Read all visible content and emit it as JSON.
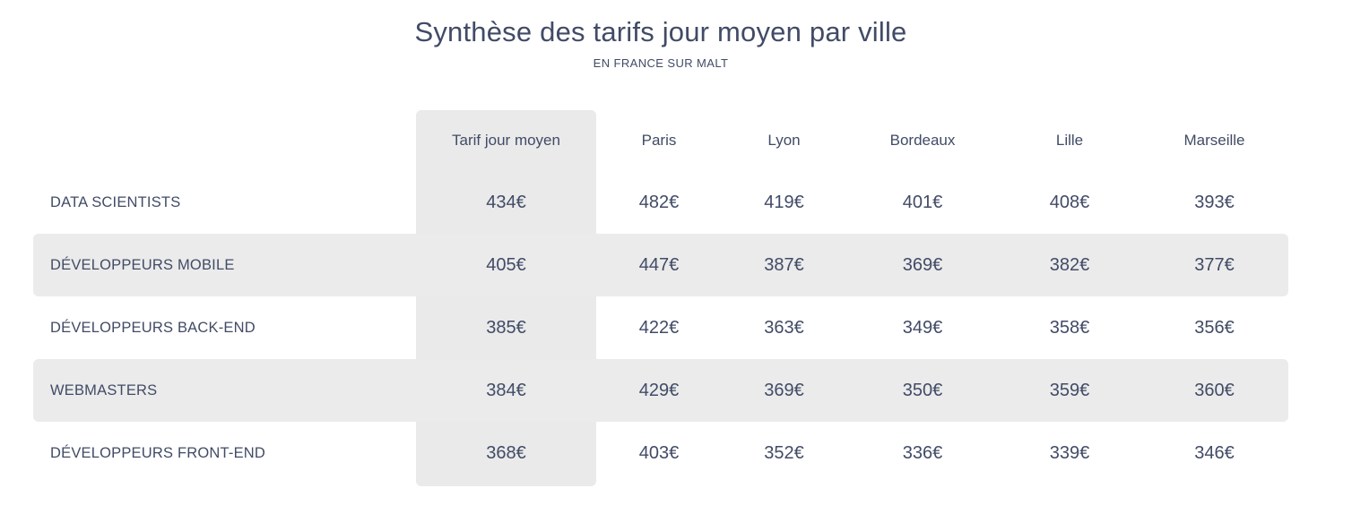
{
  "header": {
    "title": "Synthèse des tarifs jour moyen par ville",
    "subtitle": "EN FRANCE SUR MALT"
  },
  "colors": {
    "text": "#414b66",
    "highlight_bg": "#eaeaea",
    "stripe_bg": "#ebebeb",
    "page_bg": "#ffffff"
  },
  "table": {
    "columns": [
      "Tarif jour moyen",
      "Paris",
      "Lyon",
      "Bordeaux",
      "Lille",
      "Marseille"
    ],
    "rows": [
      {
        "label": "DATA SCIENTISTS",
        "cells": [
          "434€",
          "482€",
          "419€",
          "401€",
          "408€",
          "393€"
        ]
      },
      {
        "label": "DÉVELOPPEURS MOBILE",
        "cells": [
          "405€",
          "447€",
          "387€",
          "369€",
          "382€",
          "377€"
        ]
      },
      {
        "label": "DÉVELOPPEURS BACK-END",
        "cells": [
          "385€",
          "422€",
          "363€",
          "349€",
          "358€",
          "356€"
        ]
      },
      {
        "label": "WEBMASTERS",
        "cells": [
          "384€",
          "429€",
          "369€",
          "350€",
          "359€",
          "360€"
        ]
      },
      {
        "label": "DÉVELOPPEURS FRONT-END",
        "cells": [
          "368€",
          "403€",
          "352€",
          "336€",
          "339€",
          "346€"
        ]
      }
    ]
  },
  "chart_data": {
    "type": "table",
    "title": "Synthèse des tarifs jour moyen par ville",
    "subtitle": "EN FRANCE SUR MALT",
    "columns": [
      "Tarif jour moyen",
      "Paris",
      "Lyon",
      "Bordeaux",
      "Lille",
      "Marseille"
    ],
    "rows": [
      {
        "label": "Data scientists",
        "values": [
          434,
          482,
          419,
          401,
          408,
          393
        ]
      },
      {
        "label": "Développeurs mobile",
        "values": [
          405,
          447,
          387,
          369,
          382,
          377
        ]
      },
      {
        "label": "Développeurs back-end",
        "values": [
          385,
          422,
          363,
          349,
          358,
          356
        ]
      },
      {
        "label": "Webmasters",
        "values": [
          384,
          429,
          369,
          350,
          359,
          360
        ]
      },
      {
        "label": "Développeurs front-end",
        "values": [
          368,
          403,
          352,
          336,
          339,
          346
        ]
      }
    ],
    "value_unit": "€",
    "highlighted_column": "Tarif jour moyen",
    "striped_row_indices": [
      1,
      3
    ]
  }
}
